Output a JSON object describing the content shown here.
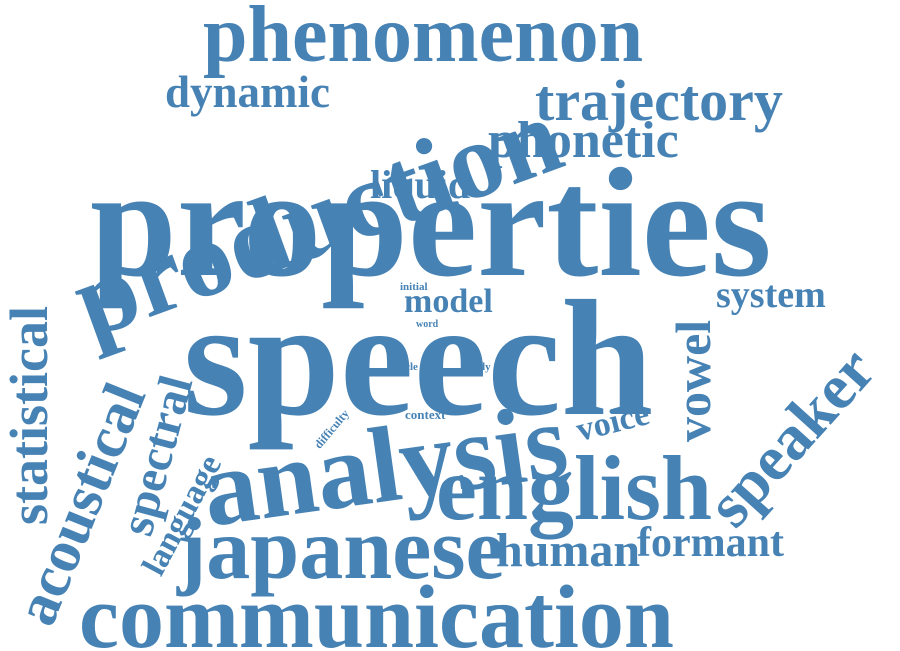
{
  "color": "#4682b4",
  "words": {
    "phenomenon": "phenomenon",
    "dynamic": "dynamic",
    "production": "production",
    "trajectory": "trajectory",
    "phonetic": "phonetic",
    "liquid": "liquid",
    "properties": "properties",
    "statistical": "statistical",
    "initial": "initial",
    "model": "model",
    "word": "word",
    "vowel": "vowel",
    "system": "system",
    "speaker": "speaker",
    "acoustical": "acoustical",
    "spectral": "spectral",
    "speech": "speech",
    "article": "article",
    "study": "study",
    "difficulty": "difficulty",
    "context": "context",
    "voice": "voice",
    "language": "language",
    "analysis": "analysis",
    "english": "english",
    "japanese": "japanese",
    "human": "human",
    "formant": "formant",
    "communication": "communication"
  }
}
